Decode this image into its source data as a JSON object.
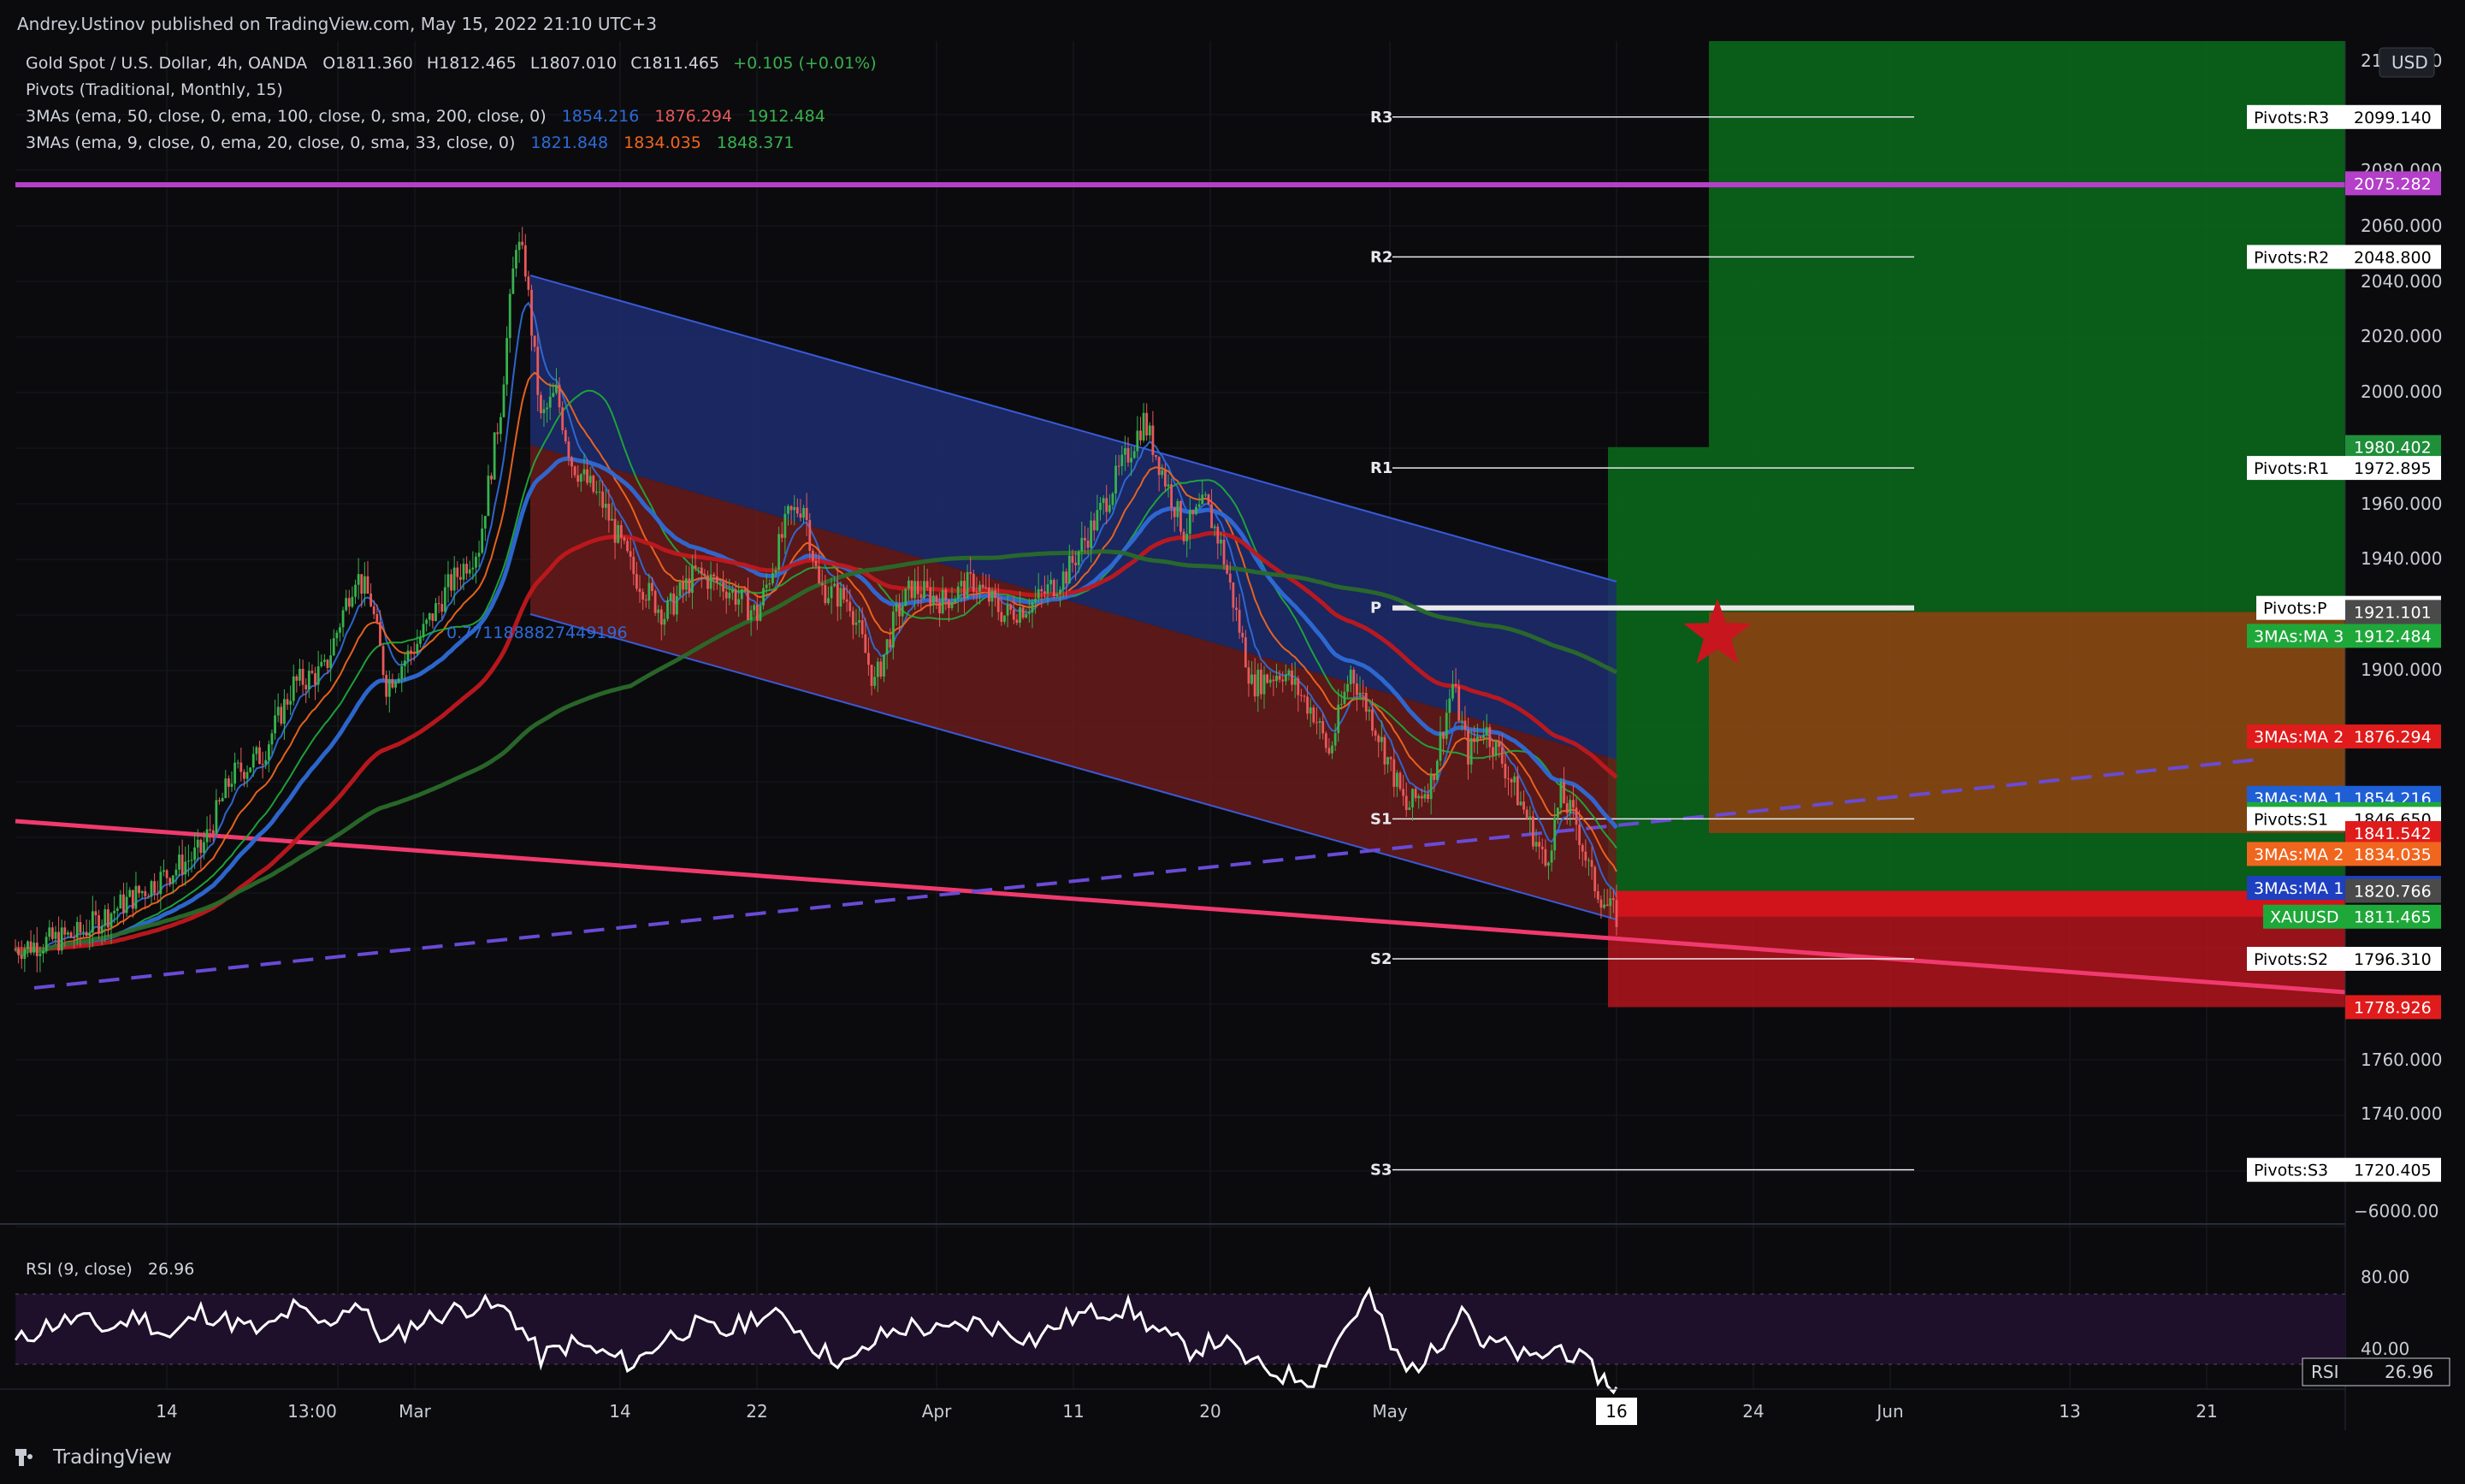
{
  "header": {
    "publisher": "Andrey.Ustinov published on TradingView.com, May 15, 2022 21:10 UTC+3"
  },
  "legend": {
    "symbol_title": "Gold Spot / U.S. Dollar, 4h, OANDA",
    "open": "O1811.360",
    "high": "H1812.465",
    "low": "L1807.010",
    "close": "C1811.465",
    "change": "+0.105 (+0.01%)",
    "pivots_label": "Pivots (Traditional, Monthly, 15)",
    "ma_set1_label": "3MAs (ema, 50, close, 0, ema, 100, close, 0, sma, 200, close, 0)",
    "ma_set1_values": [
      "1854.216",
      "1876.294",
      "1912.484"
    ],
    "ma_set2_label": "3MAs (ema, 9, close, 0, ema, 20, close, 0, sma, 33, close, 0)",
    "ma_set2_values": [
      "1821.848",
      "1834.035",
      "1848.371"
    ],
    "fib_label": "0.7711888827449196"
  },
  "price_axis": {
    "currency": "USD",
    "ticks": [
      "2100.000",
      "2080.000",
      "2060.000",
      "2040.000",
      "2020.000",
      "2000.000",
      "1960.000",
      "1940.000",
      "1900.000",
      "1760.000",
      "1740.000"
    ],
    "odd_tick": "−6000.00"
  },
  "price_labels": [
    {
      "name": "Pivots:R3",
      "value": "2099.140",
      "price": 2099.14,
      "kind": "pivot"
    },
    {
      "name": "",
      "value": "2075.282",
      "price": 2075.282,
      "kind": "hline",
      "color": "#b43fc8"
    },
    {
      "name": "Pivots:R2",
      "value": "2048.800",
      "price": 2048.8,
      "kind": "pivot"
    },
    {
      "name": "",
      "value": "1980.402",
      "price": 1980.402,
      "kind": "target",
      "color": "#1f8f3a"
    },
    {
      "name": "Pivots:R1",
      "value": "1972.895",
      "price": 1972.895,
      "kind": "pivot"
    },
    {
      "name": "Pivots:P",
      "value": "1922.555",
      "price": 1922.555,
      "kind": "pivot"
    },
    {
      "name": "",
      "value": "1921.101",
      "price": 1921.101,
      "kind": "entry",
      "color": "#4a4a4a"
    },
    {
      "name": "3MAs:MA 3",
      "value": "1912.484",
      "price": 1912.484,
      "kind": "ma",
      "color": "#1fa83a",
      "valcolor": "#1fa83a"
    },
    {
      "name": "3MAs:MA 2",
      "value": "1876.294",
      "price": 1876.294,
      "kind": "ma",
      "color": "#e01b1b",
      "valcolor": "#e01b1b"
    },
    {
      "name": "3MAs:MA 1",
      "value": "1854.216",
      "price": 1854.216,
      "kind": "ma",
      "color": "#1e5fd6",
      "valcolor": "#1e5fd6"
    },
    {
      "name": "3MAs:MA 3",
      "value": "1848.371",
      "price": 1848.371,
      "kind": "ma",
      "color": "#1fa83a",
      "valcolor": "#1fa83a"
    },
    {
      "name": "Pivots:S1",
      "value": "1846.650",
      "price": 1846.65,
      "kind": "pivot"
    },
    {
      "name": "",
      "value": "1841.542",
      "price": 1841.542,
      "kind": "hline",
      "color": "#e01b1b"
    },
    {
      "name": "3MAs:MA 2",
      "value": "1834.035",
      "price": 1834.035,
      "kind": "ma",
      "color": "#f0661e",
      "valcolor": "#f0661e"
    },
    {
      "name": "3MAs:MA 1",
      "value": "1821.848",
      "price": 1821.848,
      "kind": "ma",
      "color": "#1e3fc0",
      "valcolor": "#1e3fc0"
    },
    {
      "name": "",
      "value": "1820.766",
      "price": 1820.766,
      "kind": "entry",
      "color": "#4a4a4a"
    },
    {
      "name": "XAUUSD",
      "value": "1811.465",
      "price": 1811.465,
      "kind": "last",
      "color": "#1fa83a",
      "valcolor": "#1fa83a"
    },
    {
      "name": "Pivots:S2",
      "value": "1796.310",
      "price": 1796.31,
      "kind": "pivot"
    },
    {
      "name": "",
      "value": "1778.926",
      "price": 1778.926,
      "kind": "stop",
      "color": "#e01b1b"
    },
    {
      "name": "Pivots:S3",
      "value": "1720.405",
      "price": 1720.405,
      "kind": "pivot"
    }
  ],
  "time_axis": {
    "labels": [
      "14",
      "13:00",
      "Mar",
      "14",
      "22",
      "Apr",
      "11",
      "20",
      "May",
      "16",
      "24",
      "Jun",
      "13",
      "21"
    ]
  },
  "pivot_tags": [
    "R3",
    "R2",
    "R1",
    "P",
    "S1",
    "S2",
    "S3"
  ],
  "rsi": {
    "label": "RSI (9, close)",
    "value": "26.96",
    "badge_name": "RSI",
    "ticks": [
      "80.00",
      "40.00"
    ]
  },
  "footer": {
    "brand": "TradingView"
  },
  "colors": {
    "background": "#0b0b0e",
    "up_candle": "#37b24d",
    "down_candle": "#e8595a",
    "channel_upper": "#1c2a6b",
    "channel_lower": "#6b1c1c",
    "purple_line": "#b43fc8",
    "trend_pink": "#f03a6e",
    "target_green": "#0b6b1b",
    "risk_red": "#c8161e",
    "mid_orange": "#8a4a13"
  },
  "chart_data": {
    "type": "candlestick",
    "title": "Gold Spot / U.S. Dollar, 4h, OANDA",
    "price_range": [
      1690,
      2112
    ],
    "x_labels": [
      "14",
      "13:00",
      "Mar",
      "14",
      "22",
      "Apr",
      "11",
      "20",
      "May",
      "16",
      "24",
      "Jun",
      "13",
      "21"
    ],
    "close_path": [
      [
        0,
        1800
      ],
      [
        20,
        1805
      ],
      [
        40,
        1820
      ],
      [
        60,
        1835
      ],
      [
        70,
        1862
      ],
      [
        80,
        1870
      ],
      [
        90,
        1895
      ],
      [
        100,
        1900
      ],
      [
        110,
        1935
      ],
      [
        115,
        1925
      ],
      [
        120,
        1895
      ],
      [
        130,
        1910
      ],
      [
        140,
        1930
      ],
      [
        150,
        1945
      ],
      [
        157,
        1995
      ],
      [
        162,
        2055
      ],
      [
        165,
        2045
      ],
      [
        170,
        1990
      ],
      [
        175,
        2000
      ],
      [
        180,
        1975
      ],
      [
        190,
        1960
      ],
      [
        200,
        1935
      ],
      [
        210,
        1920
      ],
      [
        220,
        1935
      ],
      [
        230,
        1930
      ],
      [
        240,
        1920
      ],
      [
        250,
        1955
      ],
      [
        255,
        1960
      ],
      [
        260,
        1930
      ],
      [
        270,
        1925
      ],
      [
        278,
        1895
      ],
      [
        285,
        1920
      ],
      [
        290,
        1930
      ],
      [
        300,
        1925
      ],
      [
        310,
        1932
      ],
      [
        320,
        1920
      ],
      [
        330,
        1925
      ],
      [
        340,
        1935
      ],
      [
        350,
        1955
      ],
      [
        360,
        1978
      ],
      [
        365,
        1990
      ],
      [
        370,
        1975
      ],
      [
        378,
        1950
      ],
      [
        385,
        1960
      ],
      [
        390,
        1945
      ],
      [
        400,
        1895
      ],
      [
        410,
        1900
      ],
      [
        420,
        1885
      ],
      [
        425,
        1870
      ],
      [
        432,
        1900
      ],
      [
        440,
        1880
      ],
      [
        445,
        1865
      ],
      [
        450,
        1850
      ],
      [
        458,
        1860
      ],
      [
        465,
        1895
      ],
      [
        470,
        1870
      ],
      [
        475,
        1880
      ],
      [
        480,
        1870
      ],
      [
        488,
        1850
      ],
      [
        495,
        1830
      ],
      [
        500,
        1855
      ],
      [
        505,
        1845
      ],
      [
        510,
        1825
      ],
      [
        515,
        1815
      ],
      [
        518,
        1811.465
      ]
    ],
    "moving_averages": [
      {
        "name": "3MAs:MA 1",
        "last": 1854.216
      },
      {
        "name": "3MAs:MA 2",
        "last": 1876.294
      },
      {
        "name": "3MAs:MA 3",
        "last": 1912.484
      },
      {
        "name": "3MAs:MA 1",
        "last": 1821.848
      },
      {
        "name": "3MAs:MA 2",
        "last": 1834.035
      },
      {
        "name": "3MAs:MA 3",
        "last": 1848.371
      }
    ],
    "rsi": {
      "period": 9,
      "last": 26.96,
      "range": [
        20,
        100
      ],
      "levels": [
        30,
        70
      ],
      "path": [
        [
          0,
          52
        ],
        [
          10,
          62
        ],
        [
          20,
          66
        ],
        [
          30,
          60
        ],
        [
          40,
          68
        ],
        [
          50,
          55
        ],
        [
          60,
          70
        ],
        [
          70,
          64
        ],
        [
          80,
          58
        ],
        [
          90,
          72
        ],
        [
          100,
          62
        ],
        [
          110,
          76
        ],
        [
          120,
          52
        ],
        [
          130,
          64
        ],
        [
          140,
          70
        ],
        [
          150,
          74
        ],
        [
          160,
          70
        ],
        [
          170,
          44
        ],
        [
          180,
          52
        ],
        [
          190,
          46
        ],
        [
          200,
          40
        ],
        [
          210,
          55
        ],
        [
          220,
          62
        ],
        [
          230,
          58
        ],
        [
          240,
          68
        ],
        [
          250,
          66
        ],
        [
          260,
          48
        ],
        [
          270,
          40
        ],
        [
          280,
          56
        ],
        [
          290,
          62
        ],
        [
          300,
          58
        ],
        [
          310,
          64
        ],
        [
          320,
          60
        ],
        [
          330,
          54
        ],
        [
          340,
          66
        ],
        [
          350,
          70
        ],
        [
          360,
          72
        ],
        [
          370,
          58
        ],
        [
          380,
          48
        ],
        [
          390,
          54
        ],
        [
          400,
          40
        ],
        [
          410,
          34
        ],
        [
          420,
          32
        ],
        [
          430,
          60
        ],
        [
          438,
          80
        ],
        [
          445,
          50
        ],
        [
          450,
          36
        ],
        [
          460,
          48
        ],
        [
          468,
          76
        ],
        [
          475,
          50
        ],
        [
          480,
          52
        ],
        [
          490,
          42
        ],
        [
          500,
          50
        ],
        [
          508,
          40
        ],
        [
          515,
          30
        ],
        [
          518,
          26.96
        ]
      ]
    }
  }
}
